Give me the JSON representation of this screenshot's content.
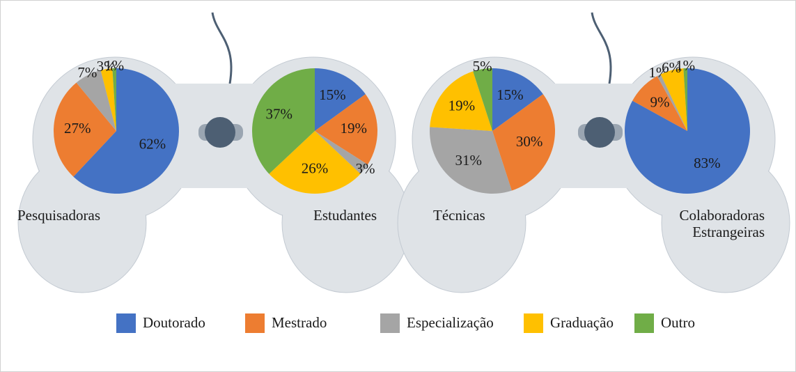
{
  "chart_data": [
    {
      "type": "pie",
      "title": "Pesquisadoras",
      "values": [
        62,
        27,
        7,
        3,
        1
      ],
      "value_labels": [
        "62%",
        "27%",
        "7%",
        "3%",
        "1%"
      ]
    },
    {
      "type": "pie",
      "title": "Estudantes",
      "values": [
        15,
        19,
        3,
        26,
        37
      ],
      "value_labels": [
        "15%",
        "19%",
        "3%",
        "26%",
        "37%"
      ]
    },
    {
      "type": "pie",
      "title": "Técnicas",
      "values": [
        15,
        30,
        31,
        19,
        5
      ],
      "value_labels": [
        "15%",
        "30%",
        "31%",
        "19%",
        "5%"
      ]
    },
    {
      "type": "pie",
      "title": "Colaboradoras Estrangeiras",
      "values": [
        83,
        9,
        1,
        6,
        1
      ],
      "value_labels": [
        "83%",
        "9%",
        "1%",
        "6%",
        "1%"
      ]
    }
  ],
  "legend": {
    "categories": [
      "Doutorado",
      "Mestrado",
      "Especialização",
      "Graduação",
      "Outro"
    ],
    "colors": [
      "#4472c4",
      "#ed7d31",
      "#a5a5a5",
      "#ffc000",
      "#70ad47"
    ]
  }
}
